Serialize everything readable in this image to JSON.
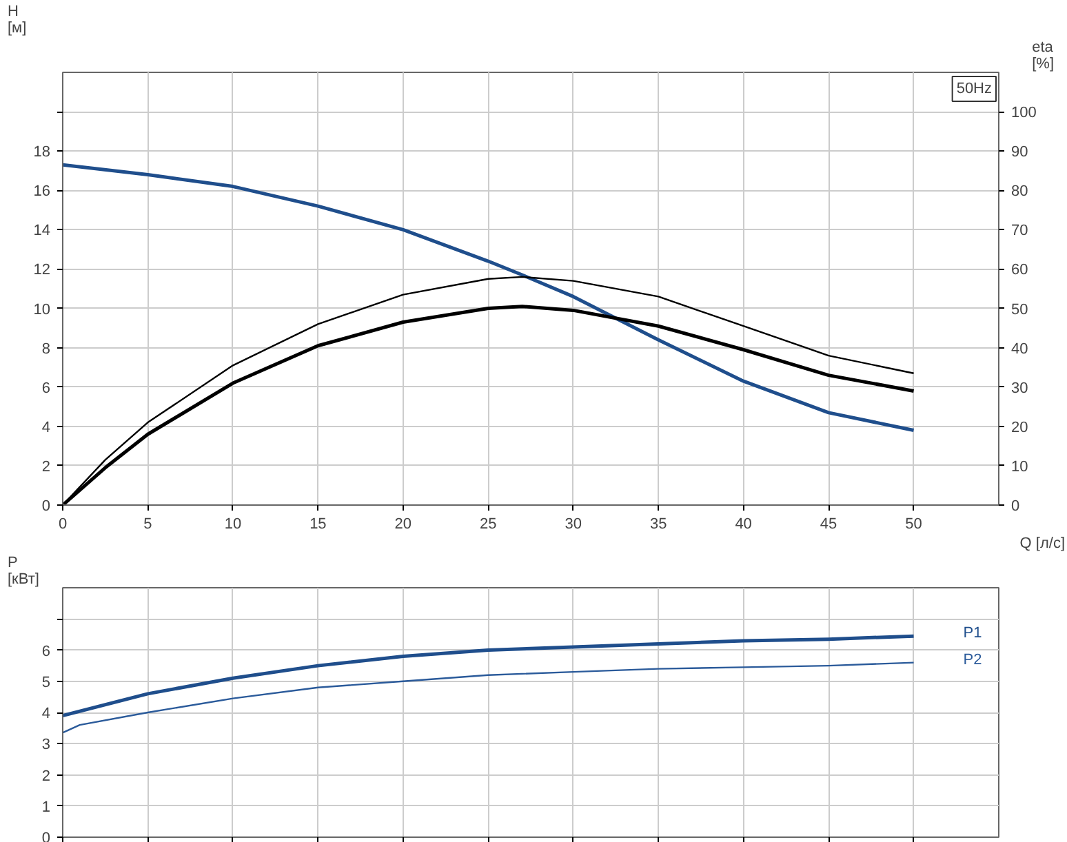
{
  "chart_data": [
    {
      "type": "line",
      "xlabel": "Q [л/с]",
      "ylabel": "H\n[м]",
      "y2label": "eta\n[%]",
      "annotations": [
        "50Hz"
      ],
      "xlim": [
        0,
        55
      ],
      "xticks": [
        0,
        5,
        10,
        15,
        20,
        25,
        30,
        35,
        40,
        45,
        50
      ],
      "ylim": [
        0,
        22
      ],
      "yticks": [
        0,
        2,
        4,
        6,
        8,
        10,
        12,
        14,
        16,
        18,
        {
          "value": 20,
          "label": null
        }
      ],
      "y2lim": [
        0,
        110
      ],
      "y2ticks": [
        0,
        10,
        20,
        30,
        40,
        50,
        60,
        70,
        80,
        90,
        100
      ],
      "grid": true,
      "series": [
        {
          "color": "#1f4e8c",
          "x": [
            0,
            5,
            10,
            15,
            20,
            25,
            27,
            30,
            35,
            40,
            45,
            50
          ],
          "values": [
            17.3,
            16.8,
            16.2,
            15.2,
            14.0,
            12.4,
            11.7,
            10.6,
            8.4,
            6.3,
            4.7,
            3.8
          ]
        },
        {
          "color": "#000000",
          "axis": "y2",
          "x": [
            0,
            2.5,
            5,
            10,
            15,
            20,
            25,
            27,
            30,
            35,
            40,
            45,
            50
          ],
          "values": [
            0,
            11.5,
            21,
            35.5,
            46,
            53.5,
            57.5,
            58,
            57,
            53,
            45.5,
            38,
            33.5
          ]
        },
        {
          "color": "#000000",
          "axis": "y2",
          "x": [
            0,
            2.5,
            5,
            10,
            15,
            20,
            25,
            27,
            30,
            35,
            40,
            45,
            50
          ],
          "values": [
            0,
            9.5,
            18,
            31,
            40.5,
            46.5,
            50,
            50.5,
            49.5,
            45.5,
            39.5,
            33,
            29
          ]
        }
      ]
    },
    {
      "type": "line",
      "ylabel": "P\n[кВт]",
      "tick_labels": "y",
      "xlim": [
        0,
        55
      ],
      "xticks": [
        0,
        5,
        10,
        15,
        20,
        25,
        30,
        35,
        40,
        45,
        50
      ],
      "ylim": [
        0,
        8
      ],
      "yticks": [
        0,
        1,
        2,
        3,
        4,
        5,
        6,
        {
          "value": 7,
          "label": null
        }
      ],
      "grid": true,
      "series": [
        {
          "name": "P1",
          "color": "#1f4e8c",
          "x": [
            0,
            5,
            10,
            15,
            20,
            25,
            30,
            35,
            40,
            45,
            50
          ],
          "values": [
            3.9,
            4.6,
            5.1,
            5.5,
            5.8,
            6.0,
            6.1,
            6.2,
            6.3,
            6.35,
            6.45
          ]
        },
        {
          "name": "P2",
          "color": "#2a5a9a",
          "x": [
            0,
            1,
            5,
            10,
            15,
            20,
            25,
            30,
            35,
            40,
            45,
            50
          ],
          "values": [
            3.35,
            3.6,
            4.0,
            4.45,
            4.8,
            5.0,
            5.2,
            5.3,
            5.4,
            5.45,
            5.5,
            5.6
          ]
        }
      ]
    }
  ]
}
